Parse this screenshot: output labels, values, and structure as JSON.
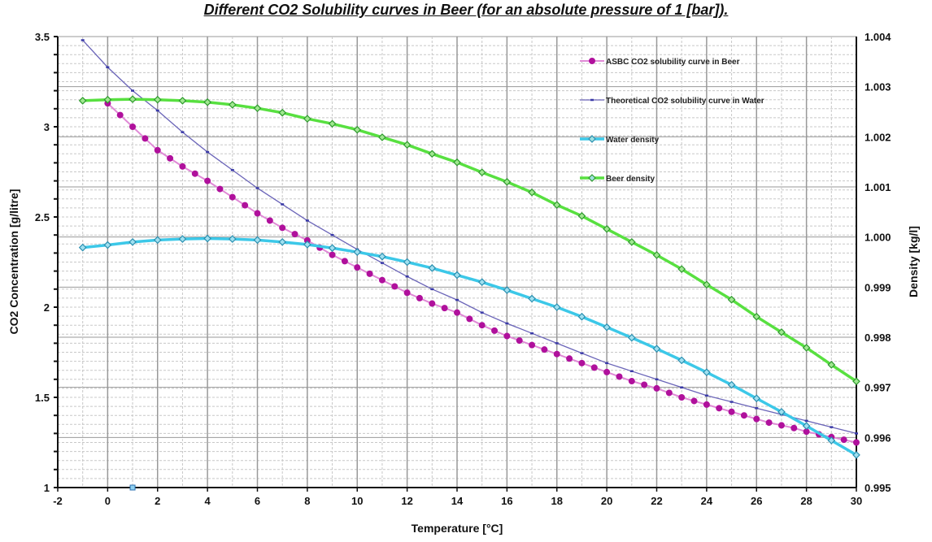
{
  "chart_data": {
    "type": "line",
    "title": "Different CO2 Solubility curves in Beer (for an absolute pressure of 1 [bar]).",
    "xlabel": "Temperature  [°C]",
    "ylabel": "CO2 Concentration  [g/litre]",
    "y2label": "Density  [kg/l]",
    "xlim": [
      -2,
      30
    ],
    "ylim": [
      1,
      3.5
    ],
    "y2lim": [
      0.995,
      1.004
    ],
    "xticks": [
      "-2",
      "0",
      "2",
      "4",
      "6",
      "8",
      "10",
      "12",
      "14",
      "16",
      "18",
      "20",
      "22",
      "24",
      "26",
      "28",
      "30"
    ],
    "yticks": [
      "1",
      "1.5",
      "2",
      "2.5",
      "3",
      "3.5"
    ],
    "y2ticks": [
      "0.995",
      "0.996",
      "0.997",
      "0.998",
      "0.999",
      "1.000",
      "1.001",
      "1.002",
      "1.003",
      "1.004"
    ],
    "grid": true,
    "legend_position": "top-right",
    "series": [
      {
        "name": "ASBC CO2 solubility curve in Beer",
        "axis": "left",
        "color": "#b0109c",
        "line_color": "#e08ad6",
        "marker": "circle",
        "x_start": 0,
        "x_step": 0.5,
        "values": [
          3.13,
          3.065,
          3.0,
          2.935,
          2.87,
          2.825,
          2.78,
          2.74,
          2.7,
          2.655,
          2.61,
          2.565,
          2.52,
          2.48,
          2.44,
          2.405,
          2.37,
          2.33,
          2.29,
          2.255,
          2.22,
          2.185,
          2.15,
          2.115,
          2.08,
          2.05,
          2.02,
          1.995,
          1.97,
          1.935,
          1.9,
          1.87,
          1.84,
          1.815,
          1.79,
          1.765,
          1.74,
          1.715,
          1.69,
          1.665,
          1.64,
          1.615,
          1.59,
          1.57,
          1.55,
          1.525,
          1.5,
          1.48,
          1.46,
          1.44,
          1.42,
          1.4,
          1.38,
          1.36,
          1.345,
          1.33,
          1.31,
          1.295,
          1.28,
          1.265,
          1.25
        ]
      },
      {
        "name": "Theoretical CO2 solubility curve in Water",
        "axis": "left",
        "color": "#3a3aa8",
        "line_color": "#6a64b8",
        "marker": "dash",
        "x_start": -1,
        "x_step": 1,
        "values": [
          3.48,
          3.33,
          3.2,
          3.09,
          2.97,
          2.86,
          2.76,
          2.66,
          2.57,
          2.48,
          2.4,
          2.32,
          2.245,
          2.17,
          2.1,
          2.04,
          1.97,
          1.91,
          1.855,
          1.8,
          1.745,
          1.69,
          1.645,
          1.6,
          1.555,
          1.51,
          1.475,
          1.44,
          1.405,
          1.37,
          1.335,
          1.3
        ]
      },
      {
        "name": "Water density",
        "axis": "right",
        "color": "#2a8fb0",
        "line_color": "#3cc8e8",
        "marker": "diamond",
        "x_start": -1,
        "x_step": 1,
        "values": [
          0.99979,
          0.99984,
          0.9999,
          0.99994,
          0.99996,
          0.99997,
          0.99996,
          0.99994,
          0.9999,
          0.99985,
          0.99978,
          0.9997,
          0.99961,
          0.9995,
          0.99938,
          0.99924,
          0.9991,
          0.99894,
          0.99877,
          0.9986,
          0.99841,
          0.9982,
          0.99799,
          0.99777,
          0.99754,
          0.9973,
          0.99705,
          0.99678,
          0.99651,
          0.99623,
          0.99594,
          0.99565
        ]
      },
      {
        "name": "Beer density",
        "axis": "right",
        "color": "#2f9a2f",
        "line_color": "#58e040",
        "marker": "diamond",
        "x_start": -1,
        "x_step": 1,
        "values": [
          1.00272,
          1.00274,
          1.00275,
          1.00274,
          1.00272,
          1.00269,
          1.00264,
          1.00257,
          1.00248,
          1.00236,
          1.00226,
          1.00214,
          1.00199,
          1.00184,
          1.00166,
          1.00149,
          1.00129,
          1.0011,
          1.00089,
          1.00064,
          1.00042,
          1.00016,
          0.9999,
          0.99964,
          0.99936,
          0.99905,
          0.99875,
          0.99841,
          0.9981,
          0.99779,
          0.99745,
          0.99712
        ]
      }
    ]
  }
}
